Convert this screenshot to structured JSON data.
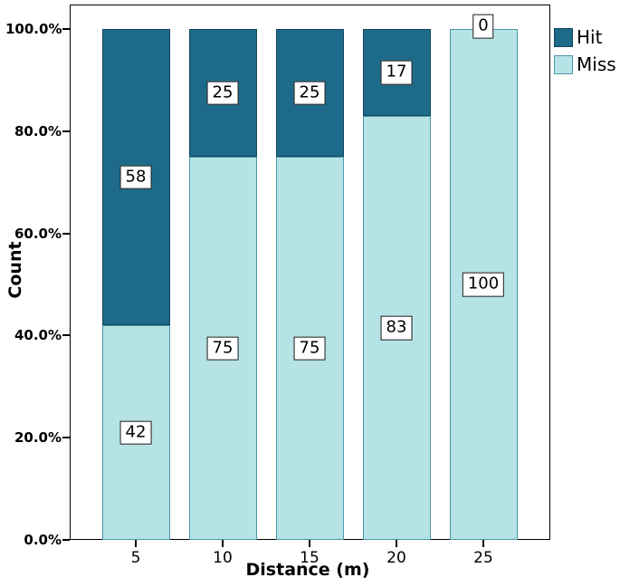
{
  "chart_data": {
    "type": "bar",
    "stacked": true,
    "percent_scale": true,
    "title": "",
    "xlabel": "Distance (m)",
    "ylabel": "Count",
    "categories": [
      "5",
      "10",
      "15",
      "20",
      "25"
    ],
    "series": [
      {
        "name": "Hit",
        "color": "#1d6a8a",
        "border_color": "#14475c",
        "values": [
          58,
          25,
          25,
          17,
          0
        ]
      },
      {
        "name": "Miss",
        "color": "#b5e3e6",
        "border_color": "#4d97a8",
        "values": [
          42,
          75,
          75,
          83,
          100
        ]
      }
    ],
    "stack_order_bottom_to_top": [
      "Miss",
      "Hit"
    ],
    "bar_value_labels": {
      "Hit": [
        "58",
        "25",
        "25",
        "17",
        "0"
      ],
      "Miss": [
        "42",
        "75",
        "75",
        "83",
        "100"
      ]
    },
    "y_ticks": {
      "labels": [
        "0.0%",
        "20.0%",
        "40.0%",
        "60.0%",
        "80.0%",
        "100.0%"
      ],
      "values": [
        0,
        20,
        40,
        60,
        80,
        100
      ]
    },
    "ylim": [
      0,
      100
    ],
    "grid": false,
    "legend": {
      "position": "top-right-outside",
      "entries": [
        "Hit",
        "Miss"
      ]
    },
    "frame_color": "#000000",
    "background_color": "#ffffff",
    "label_box": {
      "background": "#ffffff",
      "border": "#1a1a1a"
    }
  }
}
